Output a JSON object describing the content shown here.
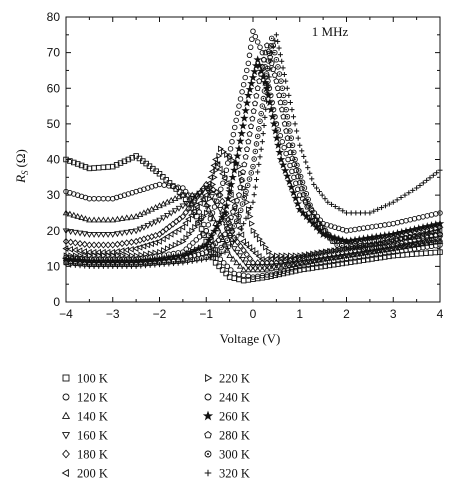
{
  "chart_data": {
    "type": "scatter",
    "annotation": "1 MHz",
    "xlabel": "Voltage (V)",
    "ylabel_main": "R",
    "ylabel_sub": "S",
    "ylabel_unit": "(Ω)",
    "xlim": [
      -4,
      4
    ],
    "ylim": [
      0,
      80
    ],
    "xticks": [
      -4,
      -3,
      -2,
      -1,
      0,
      1,
      2,
      3,
      4
    ],
    "yticks": [
      0,
      10,
      20,
      30,
      40,
      50,
      60,
      70,
      80
    ],
    "grid": false,
    "legend_position": "below",
    "series": [
      {
        "name": "100 K",
        "marker": "square",
        "points": [
          [
            -4,
            40
          ],
          [
            -3.5,
            37.5
          ],
          [
            -3,
            38
          ],
          [
            -2.5,
            41
          ],
          [
            -2,
            36
          ],
          [
            -1.5,
            30
          ],
          [
            -1.2,
            24
          ],
          [
            -1,
            17
          ],
          [
            -0.8,
            11
          ],
          [
            -0.5,
            7
          ],
          [
            -0.2,
            6
          ],
          [
            0.3,
            7
          ],
          [
            1,
            9
          ],
          [
            2,
            11
          ],
          [
            3,
            13
          ],
          [
            4,
            14
          ]
        ]
      },
      {
        "name": "120 K",
        "marker": "circle",
        "points": [
          [
            -4,
            31
          ],
          [
            -3.5,
            29
          ],
          [
            -3,
            29
          ],
          [
            -2.5,
            31
          ],
          [
            -2,
            33
          ],
          [
            -1.5,
            32
          ],
          [
            -1.2,
            27
          ],
          [
            -1,
            20
          ],
          [
            -0.7,
            12
          ],
          [
            -0.4,
            8
          ],
          [
            0,
            7
          ],
          [
            0.5,
            8
          ],
          [
            1,
            10
          ],
          [
            2,
            12
          ],
          [
            3,
            14
          ],
          [
            4,
            16
          ]
        ]
      },
      {
        "name": "140 K",
        "marker": "triangle-up",
        "points": [
          [
            -4,
            25
          ],
          [
            -3.5,
            23
          ],
          [
            -3,
            23
          ],
          [
            -2.5,
            24
          ],
          [
            -2,
            27
          ],
          [
            -1.5,
            30
          ],
          [
            -1.1,
            30
          ],
          [
            -0.8,
            22
          ],
          [
            -0.5,
            13
          ],
          [
            -0.2,
            9
          ],
          [
            0.2,
            9
          ],
          [
            0.7,
            10
          ],
          [
            1.5,
            12
          ],
          [
            2.5,
            14
          ],
          [
            4,
            17
          ]
        ]
      },
      {
        "name": "160 K",
        "marker": "triangle-down",
        "points": [
          [
            -4,
            20
          ],
          [
            -3.5,
            19
          ],
          [
            -3,
            19
          ],
          [
            -2.5,
            20
          ],
          [
            -2,
            23
          ],
          [
            -1.5,
            27
          ],
          [
            -1,
            32
          ],
          [
            -0.7,
            26
          ],
          [
            -0.4,
            15
          ],
          [
            -0.1,
            10
          ],
          [
            0.3,
            10
          ],
          [
            1,
            11
          ],
          [
            2,
            13
          ],
          [
            3,
            15
          ],
          [
            4,
            18
          ]
        ]
      },
      {
        "name": "180 K",
        "marker": "diamond",
        "points": [
          [
            -4,
            17
          ],
          [
            -3.5,
            16
          ],
          [
            -3,
            16
          ],
          [
            -2.5,
            17
          ],
          [
            -2,
            19
          ],
          [
            -1.5,
            24
          ],
          [
            -1,
            33
          ],
          [
            -0.7,
            30
          ],
          [
            -0.4,
            18
          ],
          [
            0,
            11
          ],
          [
            0.5,
            11
          ],
          [
            1,
            12
          ],
          [
            2,
            14
          ],
          [
            3,
            16
          ],
          [
            4,
            19
          ]
        ]
      },
      {
        "name": "200 K",
        "marker": "triangle-left",
        "points": [
          [
            -4,
            15
          ],
          [
            -3.5,
            14
          ],
          [
            -3,
            14
          ],
          [
            -2.5,
            15
          ],
          [
            -2,
            17
          ],
          [
            -1.5,
            21
          ],
          [
            -1,
            30
          ],
          [
            -0.8,
            40
          ],
          [
            -0.5,
            32
          ],
          [
            -0.2,
            17
          ],
          [
            0.2,
            12
          ],
          [
            0.8,
            12
          ],
          [
            1.5,
            14
          ],
          [
            2.5,
            16
          ],
          [
            4,
            20
          ]
        ]
      },
      {
        "name": "220 K",
        "marker": "triangle-right",
        "points": [
          [
            -4,
            13
          ],
          [
            -3.5,
            13
          ],
          [
            -3,
            13
          ],
          [
            -2.5,
            13
          ],
          [
            -2,
            14
          ],
          [
            -1.5,
            17
          ],
          [
            -1,
            25
          ],
          [
            -0.7,
            43
          ],
          [
            -0.3,
            38
          ],
          [
            0,
            20
          ],
          [
            0.4,
            13
          ],
          [
            1,
            13
          ],
          [
            2,
            15
          ],
          [
            3,
            17
          ],
          [
            4,
            21
          ]
        ]
      },
      {
        "name": "240 K",
        "marker": "circle",
        "points": [
          [
            -4,
            12.5
          ],
          [
            -3.5,
            12
          ],
          [
            -3,
            12
          ],
          [
            -2.5,
            12
          ],
          [
            -2,
            13
          ],
          [
            -1.5,
            14
          ],
          [
            -1,
            20
          ],
          [
            -0.6,
            35
          ],
          [
            -0.3,
            55
          ],
          [
            -0.1,
            67
          ],
          [
            0,
            76
          ],
          [
            0.2,
            70
          ],
          [
            0.5,
            50
          ],
          [
            1,
            30
          ],
          [
            1.5,
            22
          ],
          [
            2,
            20
          ],
          [
            3,
            22
          ],
          [
            4,
            25
          ]
        ]
      },
      {
        "name": "260 K",
        "marker": "star",
        "points": [
          [
            -4,
            12
          ],
          [
            -3.5,
            11.5
          ],
          [
            -3,
            11.5
          ],
          [
            -2.5,
            11.5
          ],
          [
            -2,
            12
          ],
          [
            -1.5,
            13
          ],
          [
            -1,
            16
          ],
          [
            -0.6,
            25
          ],
          [
            -0.3,
            43
          ],
          [
            -0.1,
            58
          ],
          [
            0.1,
            68
          ],
          [
            0.3,
            60
          ],
          [
            0.6,
            40
          ],
          [
            1,
            26
          ],
          [
            1.5,
            19
          ],
          [
            2,
            17
          ],
          [
            3,
            19
          ],
          [
            4,
            22
          ]
        ]
      },
      {
        "name": "280 K",
        "marker": "pentagon",
        "points": [
          [
            -4,
            11.5
          ],
          [
            -3.5,
            11
          ],
          [
            -3,
            11
          ],
          [
            -2.5,
            11
          ],
          [
            -2,
            11.5
          ],
          [
            -1.5,
            12
          ],
          [
            -1,
            14
          ],
          [
            -0.6,
            19
          ],
          [
            -0.3,
            30
          ],
          [
            -0.1,
            45
          ],
          [
            0.1,
            60
          ],
          [
            0.3,
            72
          ],
          [
            0.5,
            62
          ],
          [
            0.8,
            42
          ],
          [
            1.2,
            25
          ],
          [
            1.7,
            17
          ],
          [
            2.5,
            17
          ],
          [
            4,
            19
          ]
        ]
      },
      {
        "name": "300 K",
        "marker": "circle-dot",
        "points": [
          [
            -4,
            11
          ],
          [
            -3.5,
            10.5
          ],
          [
            -3,
            10.5
          ],
          [
            -2.5,
            10.5
          ],
          [
            -2,
            11
          ],
          [
            -1.5,
            11.5
          ],
          [
            -1,
            12.5
          ],
          [
            -0.6,
            16
          ],
          [
            -0.3,
            24
          ],
          [
            0,
            38
          ],
          [
            0.2,
            55
          ],
          [
            0.4,
            74
          ],
          [
            0.6,
            62
          ],
          [
            0.9,
            40
          ],
          [
            1.3,
            24
          ],
          [
            1.8,
            16
          ],
          [
            2.5,
            15
          ],
          [
            4,
            17
          ]
        ]
      },
      {
        "name": "320 K",
        "marker": "plus",
        "points": [
          [
            -4,
            10.5
          ],
          [
            -3.5,
            10
          ],
          [
            -3,
            10
          ],
          [
            -2.5,
            10
          ],
          [
            -2,
            10.5
          ],
          [
            -1.5,
            11
          ],
          [
            -1,
            12
          ],
          [
            -0.6,
            14
          ],
          [
            -0.3,
            19
          ],
          [
            0,
            28
          ],
          [
            0.2,
            45
          ],
          [
            0.4,
            70
          ],
          [
            0.5,
            75
          ],
          [
            0.7,
            62
          ],
          [
            1,
            44
          ],
          [
            1.3,
            33
          ],
          [
            1.6,
            28
          ],
          [
            2,
            25
          ],
          [
            2.5,
            25
          ],
          [
            3,
            28
          ],
          [
            3.5,
            32
          ],
          [
            4,
            37
          ]
        ]
      }
    ]
  }
}
